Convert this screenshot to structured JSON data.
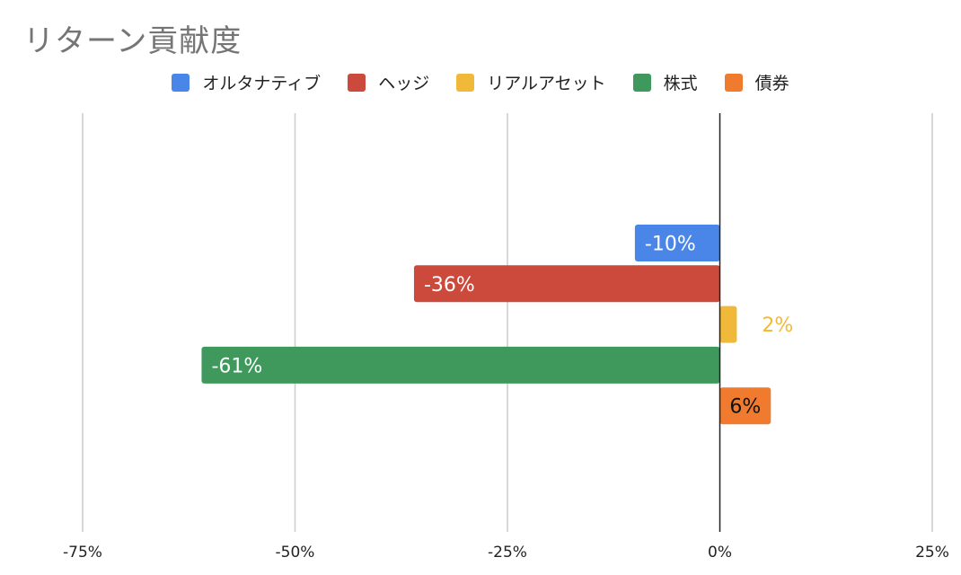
{
  "chart_data": {
    "type": "bar",
    "orientation": "horizontal",
    "title": "リターン貢献度",
    "xlabel": "",
    "ylabel": "",
    "xlim": [
      -75,
      25
    ],
    "x_ticks": [
      "-75%",
      "-50%",
      "-25%",
      "0%",
      "25%"
    ],
    "x_tick_values": [
      -75,
      -50,
      -25,
      0,
      25
    ],
    "unit": "%",
    "grid": true,
    "legend_position": "top",
    "series": [
      {
        "name": "オルタナティブ",
        "value": -10,
        "label": "-10%",
        "color": "#4a86e8",
        "label_color": "#ffffff"
      },
      {
        "name": "ヘッジ",
        "value": -36,
        "label": "-36%",
        "color": "#cc4a3c",
        "label_color": "#ffffff"
      },
      {
        "name": "リアルアセット",
        "value": 2,
        "label": "2%",
        "color": "#f1b93a",
        "label_color": "#f1b93a"
      },
      {
        "name": "株式",
        "value": -61,
        "label": "-61%",
        "color": "#3f995c",
        "label_color": "#ffffff"
      },
      {
        "name": "債券",
        "value": 6,
        "label": "6%",
        "color": "#f07b2e",
        "label_color": "#111111"
      }
    ]
  }
}
